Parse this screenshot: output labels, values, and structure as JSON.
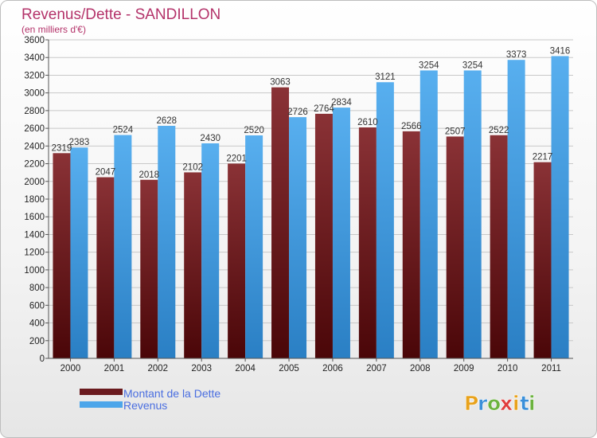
{
  "chart_data": {
    "type": "bar",
    "title": "Revenus/Dette - SANDILLON",
    "subtitle": "(en milliers d'€)",
    "categories": [
      "2000",
      "2001",
      "2002",
      "2003",
      "2004",
      "2005",
      "2006",
      "2007",
      "2008",
      "2009",
      "2010",
      "2011"
    ],
    "series": [
      {
        "name": "Montant de la Dette",
        "color": "#7a2a2e",
        "values": [
          2319,
          2047,
          2018,
          2102,
          2201,
          3063,
          2764,
          2610,
          2566,
          2507,
          2522,
          2217
        ],
        "labels": [
          "2319",
          "2047",
          "2018",
          "2102",
          "2201",
          "3063",
          "2764",
          "2610",
          "2566",
          "2507",
          "2522",
          "2217"
        ]
      },
      {
        "name": "Revenus",
        "color": "#4da6ea",
        "values": [
          2383,
          2524,
          2628,
          2430,
          2520,
          2726,
          2834,
          3121,
          3254,
          3254,
          3373,
          3416
        ],
        "labels": [
          "2383",
          "2524",
          "2628",
          "2430",
          "2520",
          "2726",
          "2834",
          "3121",
          "3254",
          "3254",
          "3373",
          "3416"
        ]
      }
    ],
    "ylim": [
      0,
      3600
    ],
    "yticks": [
      "0",
      "200",
      "400",
      "600",
      "800",
      "1000",
      "1200",
      "1400",
      "1600",
      "1800",
      "2000",
      "2200",
      "2400",
      "2600",
      "2800",
      "3000",
      "3200",
      "3400",
      "3600"
    ],
    "grid": true,
    "legend_position": "bottom-left"
  },
  "brand": {
    "letters": [
      "P",
      "r",
      "o",
      "x",
      "i",
      "t",
      "i"
    ],
    "colors": [
      "#e8a21c",
      "#3a8fd9",
      "#6cb33f",
      "#e03c3c",
      "#e8a21c",
      "#3a8fd9",
      "#6cb33f"
    ]
  }
}
